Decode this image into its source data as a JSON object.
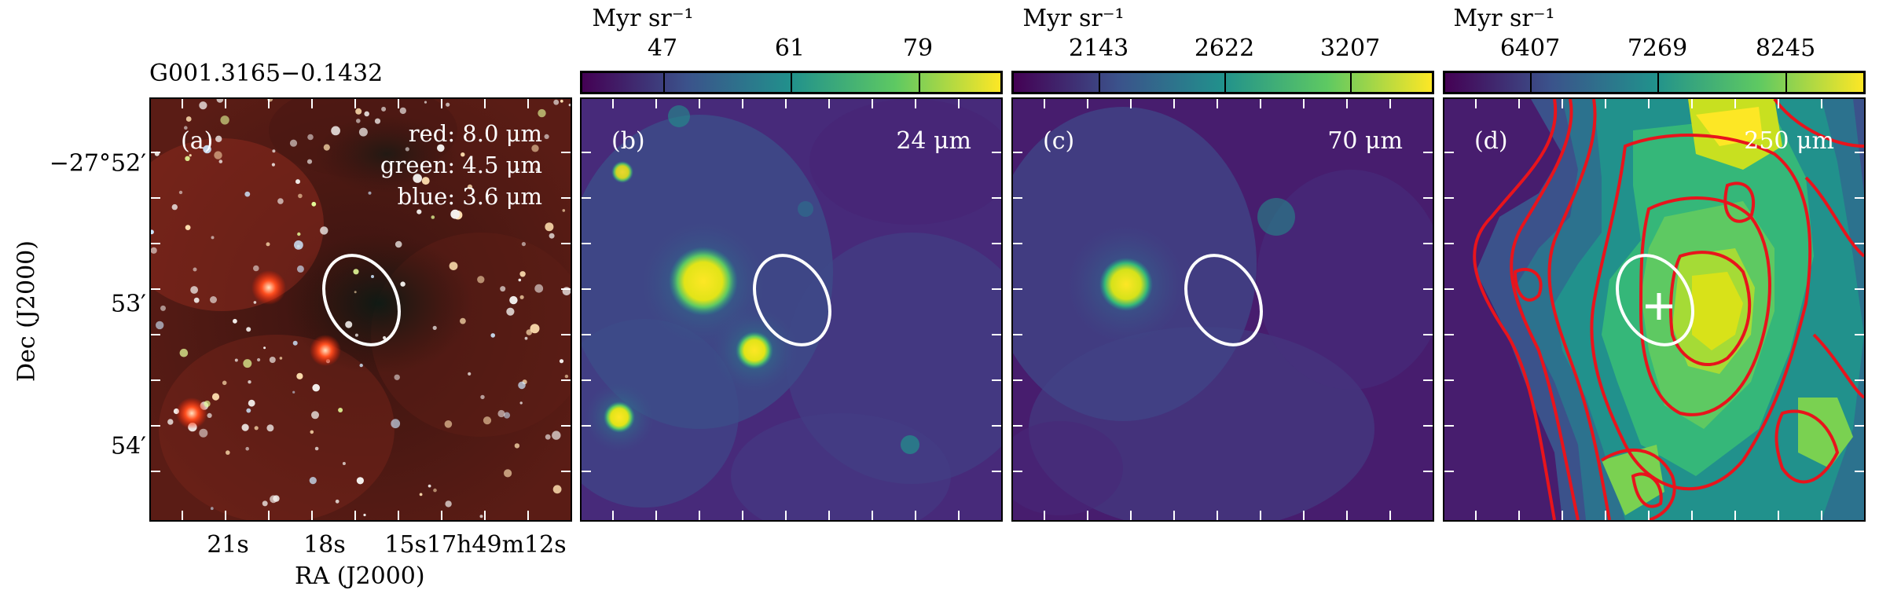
{
  "figure": {
    "source_name": "G001.3165−0.1432",
    "dec_axis_label": "Dec (J2000)",
    "ra_axis_label": "RA (J2000)",
    "dec_ticks": [
      "−27°52′",
      "53′",
      "54′"
    ],
    "ra_ticks": [
      "21s",
      "18s",
      "15s17h49m12s"
    ]
  },
  "panels": [
    {
      "label": "(a)",
      "legend": [
        "red: 8.0 μm",
        "green: 4.5 μm",
        "blue: 3.6 μm"
      ],
      "image": "three-color infrared composite"
    },
    {
      "label": "(b)",
      "wavelength": "24 μm",
      "colorbar": {
        "unit": "Myr sr⁻¹",
        "ticks": [
          "47",
          "61",
          "79"
        ]
      }
    },
    {
      "label": "(c)",
      "wavelength": "70 μm",
      "colorbar": {
        "unit": "Myr sr⁻¹",
        "ticks": [
          "2143",
          "2622",
          "3207"
        ]
      }
    },
    {
      "label": "(d)",
      "wavelength": "250 μm",
      "colorbar": {
        "unit": "Myr sr⁻¹",
        "ticks": [
          "6407",
          "7269",
          "8245"
        ]
      },
      "overlays": [
        "red intensity contours",
        "white cross marker"
      ]
    }
  ],
  "colors": {
    "viridis": [
      "#440154",
      "#3b528b",
      "#21918c",
      "#5ec962",
      "#fde725"
    ],
    "contour": "#e8141c",
    "ellipse": "#ffffff"
  }
}
